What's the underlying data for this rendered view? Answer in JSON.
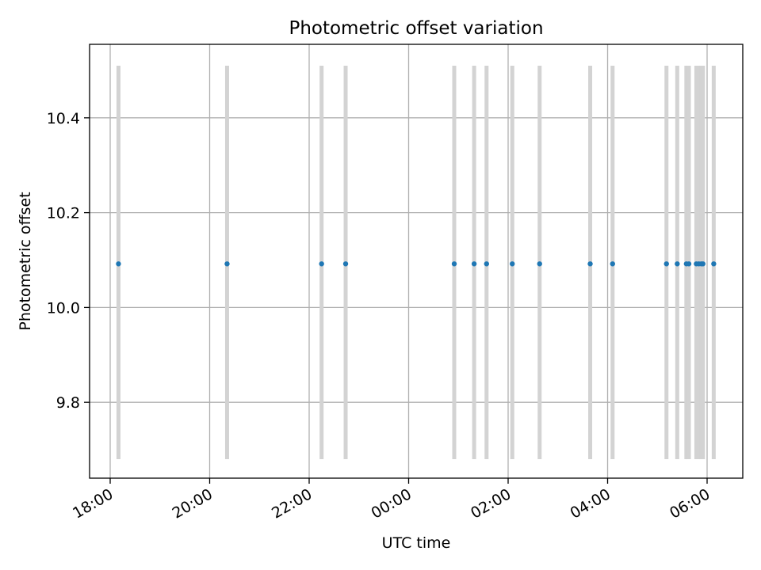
{
  "chart_data": {
    "type": "scatter",
    "title": "Photometric offset variation",
    "xlabel": "UTC time",
    "ylabel": "Photometric offset",
    "x_axis_type": "time",
    "x_ticks": [
      "18:00",
      "20:00",
      "22:00",
      "00:00",
      "02:00",
      "04:00",
      "06:00"
    ],
    "y_ticks": [
      "9.8",
      "10.0",
      "10.2",
      "10.4"
    ],
    "y_tick_values": [
      9.8,
      10.0,
      10.2,
      10.4
    ],
    "ylim": [
      9.64,
      10.555
    ],
    "grid": true,
    "colors": {
      "points": "#1f77b4",
      "bands": "#d3d3d3",
      "grid": "#b0b0b0"
    },
    "series": [
      {
        "x": [
          "18:10",
          "20:21",
          "22:15",
          "22:44",
          "00:55",
          "01:19",
          "01:34",
          "02:05",
          "02:38",
          "03:39",
          "04:06",
          "05:11",
          "05:24",
          "05:35",
          "05:38",
          "05:47",
          "05:50",
          "05:53",
          "05:55",
          "06:08"
        ],
        "y": [
          10.092,
          10.092,
          10.092,
          10.092,
          10.092,
          10.092,
          10.092,
          10.092,
          10.092,
          10.092,
          10.092,
          10.092,
          10.092,
          10.092,
          10.092,
          10.092,
          10.092,
          10.092,
          10.092,
          10.092
        ]
      }
    ],
    "error_range": [
      9.68,
      10.51
    ]
  }
}
